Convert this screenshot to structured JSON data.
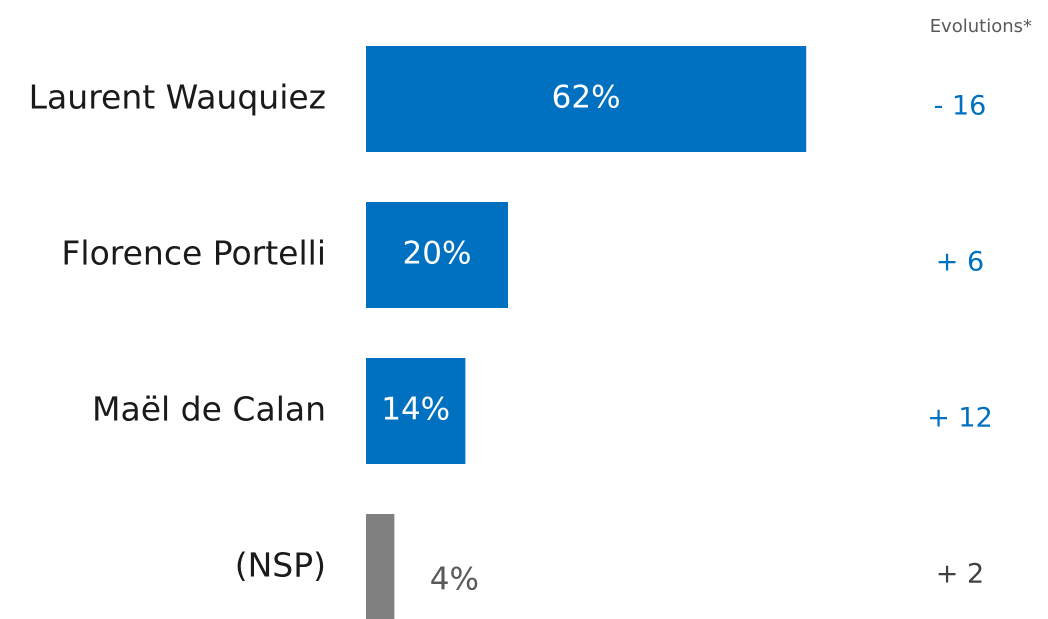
{
  "chart_data": {
    "type": "hbar",
    "categories": [
      "Laurent Wauquiez",
      "Florence Portelli",
      "Maël de Calan",
      "(NSP)"
    ],
    "values": [
      62,
      20,
      14,
      4
    ],
    "value_labels": [
      "62%",
      "20%",
      "14%",
      "4%"
    ],
    "colors": [
      "#0070c0",
      "#0070c0",
      "#0070c0",
      "#808080"
    ],
    "evolutions_title": "Evolutions*",
    "evolutions": [
      "- 16",
      "+ 6",
      "+ 12",
      "+ 2"
    ],
    "evolution_colors": [
      "#0070c0",
      "#0070c0",
      "#0070c0",
      "#404040"
    ]
  }
}
